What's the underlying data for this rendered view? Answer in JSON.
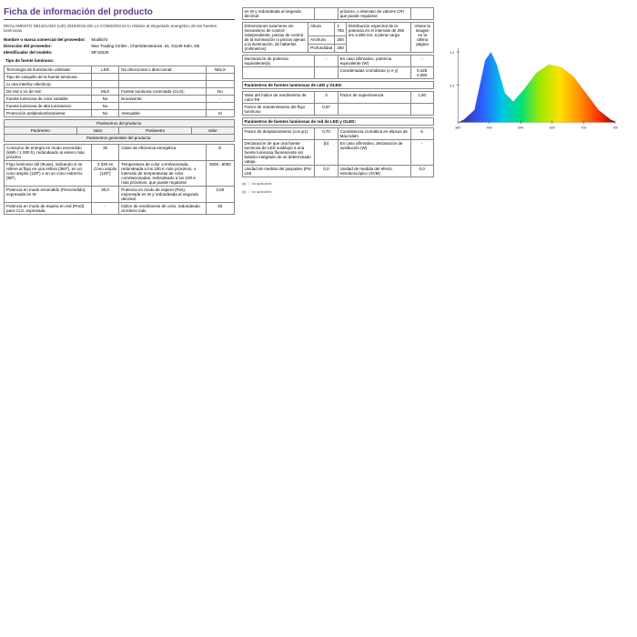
{
  "title": "Ficha de información del producto",
  "subtitle": "REGLAMENTO DELEGADO (UE) 2019/2015 DE LA COMISIÓN en lo relativo al etiquetado energético de las fuentes luminosas",
  "hdr": {
    "supplier_lbl": "Nombre o marca comercial del proveedor:",
    "supplier": "Modilicht",
    "addr_lbl": "Dirección del proveedor:",
    "addr": "Max Trading GmbH., Charlottenstrasse. 61, 51149 Köln, DE",
    "model_lbl": "Identificador del modelo:",
    "model": "MF18228"
  },
  "sec_type": "Tipo de fuente luminosa:",
  "type_rows": [
    [
      "Tecnología de iluminación utilizada:",
      "LED",
      "No direccional o direccional:",
      "NDLS"
    ],
    [
      "Tipo de casquillo de la fuente luminosa",
      "",
      "",
      ""
    ],
    [
      "(u otra interfaz eléctrica):",
      "",
      "",
      ""
    ],
    [
      "De red o no de red:",
      "MLS",
      "Fuente luminosa conectada (CLS):",
      "No"
    ],
    [
      "Fuente luminosa de color variable:",
      "No",
      "Envolvente:",
      "-"
    ],
    [
      "Fuente luminosa de alta luminancia:",
      "No",
      "",
      ""
    ],
    [
      "Protección antideslumbramiento:",
      "No",
      "Atenuable:",
      "Sí"
    ]
  ],
  "sec_prod": "Parámetros del producto",
  "prod_hdr": [
    "Parámetro",
    "Valor",
    "Parámetro",
    "Valor"
  ],
  "sec_gen": "Parámetros generales del producto:",
  "gen_rows": [
    [
      "Consumo de energía en modo encendido (kWh / 1 000 h), redondeado al entero más próximo",
      "30",
      "Clase de eficiencia energética",
      "E"
    ],
    [
      "Flujo luminoso útil (Φuse), indicando si se refiere al flujo en una esfera (360º), en un cono amplio (120º) o en un cono estrecho (90º)",
      "3 330 en Cono amplio (120º)",
      "Temperatura de color correlacionada, redondeada a los 100 K más próximos, o intervalo de temperaturas de color correlacionadas, redondeado a los 100 K más próximos, que puede regularse",
      "3000...6000"
    ],
    [
      "Potencia en modo encendido (Pencendido), expresada en W",
      "30,0",
      "Potencia en modo de espera (Pes), expresada en W y redondeada al segundo decimal",
      "0,50"
    ],
    [
      "Potencia en modo de espera en red (Pred) para CLS, expresada",
      "-",
      "Índice de rendimiento de color, redondeado al entero más",
      "83"
    ]
  ],
  "col2_top": "en W y redondeada al segundo decimal",
  "col2_top2": "próximo, o intervalo de valores CRI que puede regularse",
  "dims_rows": [
    [
      "Dimensiones exteriores sin mecanismo de control independiente, piezas de control de la iluminación ni piezas ajenas a la iluminación, de haberlas (milímetros)",
      "Altura",
      "1 765",
      "Distribución espectral de la potencia en el intervalo de 250 nm a 800 nm, a plena carga",
      "Véase la imagen en la última página"
    ],
    [
      "",
      "Anchura",
      "250",
      "",
      ""
    ],
    [
      "",
      "Profundidad",
      "250",
      "",
      ""
    ]
  ],
  "decl_rows": [
    [
      "Declaración de potencia equivalente(a)",
      "-",
      "En caso afirmativo, potencia equivalente (W)",
      "-"
    ],
    [
      "",
      "",
      "Coordenadas cromáticas (x e y)",
      "0,425\n0,392"
    ]
  ],
  "sec_led": "Parámetros de fuentes luminosas de LED y OLED:",
  "led_rows": [
    [
      "Valor del índice de rendimiento de color R9",
      "3",
      "Factor de supervivencia",
      "1,00"
    ],
    [
      "Factor de mantenimiento del flujo luminoso",
      "0,97",
      "",
      ""
    ]
  ],
  "sec_mains": "Parámetros de fuentes luminosas de red de LED y OLED:",
  "mains_rows": [
    [
      "Factor de desplazamiento (cos φ1)",
      "0,70",
      "Consistencia cromática en elipsos de MacAdam",
      "5"
    ],
    [
      "Declaración de que una fuente luminosa de LED sustituye a una fuente luminosa fluorescente sin balasto integrado de un determinado vataje.",
      "(b)",
      "En caso afirmativo, declaración de sustitución (W)",
      "-"
    ],
    [
      "Unidad de medida del parpadeo (Pst LM)",
      "0,0",
      "Unidad de medida del efecto estroboscópico (SVM)",
      "0,0"
    ]
  ],
  "footnotes": [
    "(a) '-': no aplicable;",
    "(b) '-': no aplicable;"
  ],
  "chart": {
    "ylabels": [
      "1.0",
      "0.5"
    ],
    "xlabels": [
      "380",
      "460",
      "540",
      "620",
      "700",
      "780"
    ],
    "colors": [
      "#3b2e8f",
      "#2e5bff",
      "#00c4e8",
      "#00e07a",
      "#9be800",
      "#ffe000",
      "#ff8c00",
      "#ff3000",
      "#8b0000"
    ]
  }
}
